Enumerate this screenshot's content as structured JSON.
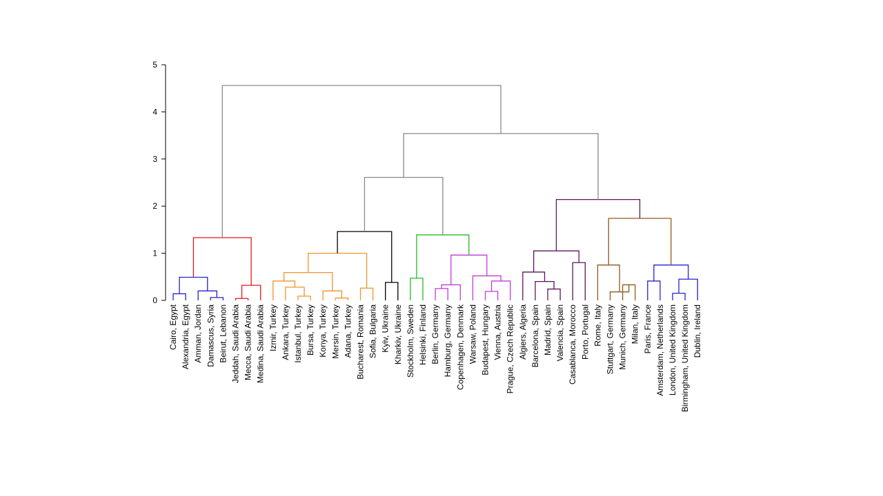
{
  "chart_data": {
    "type": "dendrogram",
    "title": "",
    "xlabel": "",
    "ylabel": "",
    "ylim": [
      0,
      5
    ],
    "yticks": [
      0,
      1,
      2,
      3,
      4,
      5
    ],
    "grid": false,
    "leaves": [
      "Cairo, Egypt",
      "Alexandria, Egypt",
      "Amman, Jordan",
      "Damascus, Syria",
      "Beirut, Lebanon",
      "Jeddah, Saudi Arabia",
      "Mecca, Saudi Arabia",
      "Medina, Saudi Arabia",
      "Izmir, Turkey",
      "Ankara, Turkey",
      "Istanbul, Turkey",
      "Bursa, Turkey",
      "Konya, Turkey",
      "Mersin, Turkey",
      "Adana, Turkey",
      "Bucharest, Romania",
      "Sofia, Bulgaria",
      "Kyiv, Ukraine",
      "Kharkiv, Ukraine",
      "Stockholm, Sweden",
      "Helsinki, Finland",
      "Berlin, Germany",
      "Hamburg, Germany",
      "Copenhagen, Denmark",
      "Warsaw, Poland",
      "Budapest, Hungary",
      "Vienna, Austria",
      "Prague, Czech Republic",
      "Algiers, Algeria",
      "Barcelona, Spain",
      "Madrid, Spain",
      "Valencia, Spain",
      "Casablanca, Morocco",
      "Porto, Portugal",
      "Rome, Italy",
      "Stuttgart, Germany",
      "Munich, Germany",
      "Milan, Italy",
      "Paris, France",
      "Amsterdam, Netherlands",
      "London, United Kingdom",
      "Birmingham, United Kingdom",
      "Dublin, Ireland"
    ],
    "merges": [
      {
        "a": 0,
        "b": 1,
        "height": 0.14,
        "color": "#2222cc"
      },
      {
        "a": 3,
        "b": 4,
        "height": 0.06,
        "color": "#2222cc"
      },
      {
        "a": 2,
        "b": "m1",
        "height": 0.2,
        "color": "#2222cc"
      },
      {
        "a": "m0",
        "b": "m2",
        "height": 0.49,
        "color": "#2222cc"
      },
      {
        "a": 5,
        "b": 6,
        "height": 0.04,
        "color": "#e8151b"
      },
      {
        "a": "m4",
        "b": 7,
        "height": 0.32,
        "color": "#e8151b"
      },
      {
        "a": "m3",
        "b": "m5",
        "height": 1.33,
        "color": "#e8151b"
      },
      {
        "a": 10,
        "b": 11,
        "height": 0.09,
        "color": "#f0922b"
      },
      {
        "a": 9,
        "b": "m7",
        "height": 0.28,
        "color": "#f0922b"
      },
      {
        "a": 8,
        "b": "m8",
        "height": 0.41,
        "color": "#f0922b"
      },
      {
        "a": 13,
        "b": 14,
        "height": 0.05,
        "color": "#f0922b"
      },
      {
        "a": 12,
        "b": "m10",
        "height": 0.2,
        "color": "#f0922b"
      },
      {
        "a": "m9",
        "b": "m11",
        "height": 0.59,
        "color": "#f0922b"
      },
      {
        "a": 15,
        "b": 16,
        "height": 0.26,
        "color": "#f0922b"
      },
      {
        "a": "m12",
        "b": "m13",
        "height": 1.0,
        "color": "#f0922b"
      },
      {
        "a": 17,
        "b": 18,
        "height": 0.38,
        "color": "#000000"
      },
      {
        "a": "m14",
        "b": "m15",
        "height": 1.46,
        "color": "#000000"
      },
      {
        "a": 19,
        "b": 20,
        "height": 0.47,
        "color": "#22bb22"
      },
      {
        "a": 21,
        "b": 22,
        "height": 0.25,
        "color": "#c03ad8"
      },
      {
        "a": "m18",
        "b": 23,
        "height": 0.33,
        "color": "#c03ad8"
      },
      {
        "a": 25,
        "b": 26,
        "height": 0.19,
        "color": "#c03ad8"
      },
      {
        "a": "m20",
        "b": 27,
        "height": 0.41,
        "color": "#c03ad8"
      },
      {
        "a": 24,
        "b": "m21",
        "height": 0.52,
        "color": "#c03ad8"
      },
      {
        "a": "m19",
        "b": "m22",
        "height": 0.96,
        "color": "#c03ad8"
      },
      {
        "a": "m17",
        "b": "m23",
        "height": 1.39,
        "color": "#22bb22"
      },
      {
        "a": "m16",
        "b": "m24",
        "height": 2.61,
        "color": "#888888"
      },
      {
        "a": 30,
        "b": 31,
        "height": 0.24,
        "color": "#5c1458"
      },
      {
        "a": 29,
        "b": "m26",
        "height": 0.4,
        "color": "#5c1458"
      },
      {
        "a": 28,
        "b": "m27",
        "height": 0.6,
        "color": "#5c1458"
      },
      {
        "a": 32,
        "b": 33,
        "height": 0.8,
        "color": "#5c1458"
      },
      {
        "a": "m28",
        "b": "m29",
        "height": 1.05,
        "color": "#5c1458"
      },
      {
        "a": 36,
        "b": 37,
        "height": 0.33,
        "color": "#8b5a1e"
      },
      {
        "a": 35,
        "b": "m31",
        "height": 0.18,
        "color": "#8b5a1e"
      },
      {
        "a": 34,
        "b": "m32",
        "height": 0.75,
        "color": "#8b5a1e"
      },
      {
        "a": 38,
        "b": 39,
        "height": 0.41,
        "color": "#2222cc"
      },
      {
        "a": 40,
        "b": 41,
        "height": 0.15,
        "color": "#2222cc"
      },
      {
        "a": "m35",
        "b": 42,
        "height": 0.45,
        "color": "#2222cc"
      },
      {
        "a": "m34",
        "b": "m36",
        "height": 0.75,
        "color": "#2222cc"
      },
      {
        "a": "m33",
        "b": "m37",
        "height": 1.74,
        "color": "#8b5a1e"
      },
      {
        "a": "m30",
        "b": "m38",
        "height": 2.14,
        "color": "#5c1458"
      },
      {
        "a": "m25",
        "b": "m39",
        "height": 3.54,
        "color": "#888888"
      },
      {
        "a": "m6",
        "b": "m40",
        "height": 4.56,
        "color": "#888888"
      }
    ]
  }
}
